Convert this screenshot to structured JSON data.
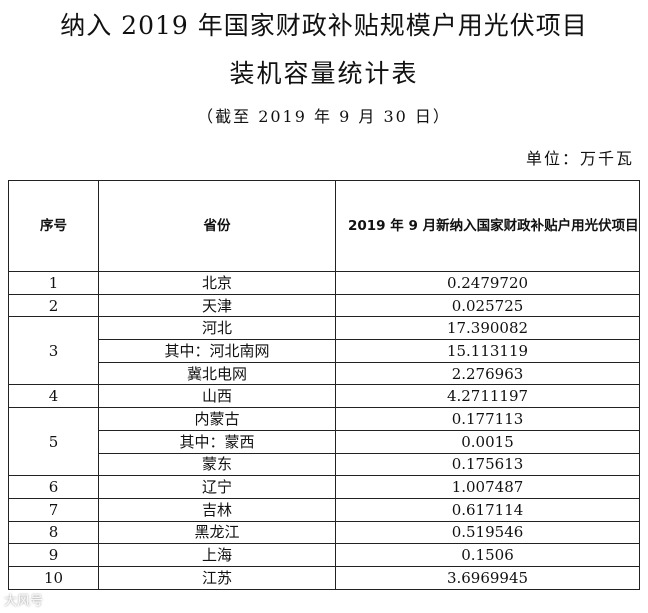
{
  "title_line1": "纳入 2019 年国家财政补贴规模户用光伏项目",
  "title_line2": "装机容量统计表",
  "subtitle": "（截至 2019 年 9 月 30 日）",
  "unit": "单位：万千瓦",
  "headers": [
    "序号",
    "省份",
    "2019 年 9 月新纳入国家财政补贴户用光伏项目"
  ],
  "rows": [
    {
      "no": "1",
      "items": [
        {
          "name": "北京",
          "value": "0.2479720"
        }
      ]
    },
    {
      "no": "2",
      "items": [
        {
          "name": "天津",
          "value": "0.025725"
        }
      ]
    },
    {
      "no": "3",
      "items": [
        {
          "name": "河北",
          "value": "17.390082"
        },
        {
          "name": "其中：河北南网",
          "value": "15.113119"
        },
        {
          "name": "冀北电网",
          "value": "2.276963"
        }
      ]
    },
    {
      "no": "4",
      "items": [
        {
          "name": "山西",
          "value": "4.2711197"
        }
      ]
    },
    {
      "no": "5",
      "items": [
        {
          "name": "内蒙古",
          "value": "0.177113"
        },
        {
          "name": "其中：蒙西",
          "value": "0.0015"
        },
        {
          "name": "蒙东",
          "value": "0.175613"
        }
      ]
    },
    {
      "no": "6",
      "items": [
        {
          "name": "辽宁",
          "value": "1.007487"
        }
      ]
    },
    {
      "no": "7",
      "items": [
        {
          "name": "吉林",
          "value": "0.617114"
        }
      ]
    },
    {
      "no": "8",
      "items": [
        {
          "name": "黑龙江",
          "value": "0.519546"
        }
      ]
    },
    {
      "no": "9",
      "items": [
        {
          "name": "上海",
          "value": "0.1506"
        }
      ]
    },
    {
      "no": "10",
      "items": [
        {
          "name": "江苏",
          "value": "3.6969945"
        }
      ]
    }
  ],
  "watermark": "大风号"
}
